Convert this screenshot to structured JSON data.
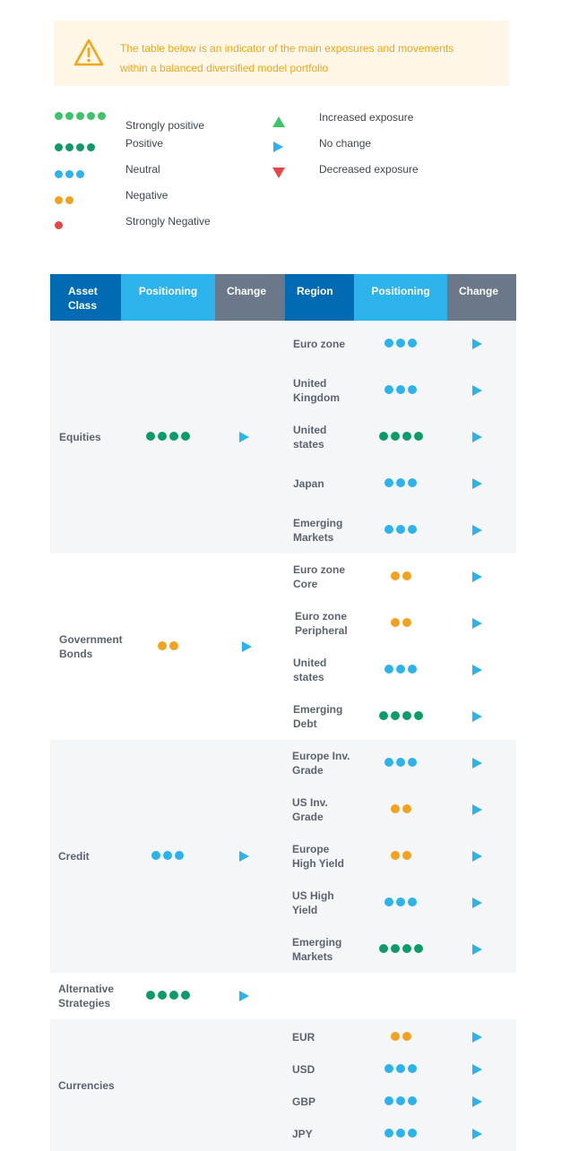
{
  "notice": {
    "icon": "warning-triangle-icon",
    "text_line1": "The table below is an indicator of the main exposures and movements",
    "text_line2": "within a balanced diversified model portfolio"
  },
  "colors": {
    "strongly_positive": "#3cc46a",
    "positive": "#0d9b68",
    "neutral": "#2db3ec",
    "negative": "#f3a21f",
    "strongly_negative": "#e84545",
    "header_dark": "#006ab3",
    "header_light": "#2db3ec",
    "header_grey": "#6a7889"
  },
  "legend": {
    "ratings": [
      {
        "label": "Strongly positive",
        "count": 5,
        "color": "strongly_positive"
      },
      {
        "label": "Positive",
        "count": 4,
        "color": "positive"
      },
      {
        "label": "Neutral",
        "count": 3,
        "color": "neutral"
      },
      {
        "label": "Negative",
        "count": 2,
        "color": "negative"
      },
      {
        "label": "Strongly Negative",
        "count": 1,
        "color": "strongly_negative"
      }
    ],
    "changes": [
      {
        "label": "Increased exposure",
        "icon": "triangle-up-icon"
      },
      {
        "label": "No change",
        "icon": "triangle-right-icon"
      },
      {
        "label": "Decreased exposure",
        "icon": "triangle-down-icon"
      }
    ]
  },
  "table": {
    "headers": {
      "asset_class_1": "Asset",
      "asset_class_2": "Class",
      "positioning": "Positioning",
      "change": "Change",
      "region": "Region",
      "positioning2": "Positioning",
      "change2": "Change"
    },
    "groups": [
      {
        "name_1": "Equities",
        "name_2": "",
        "positioning": 4,
        "color": "positive",
        "change": "no-change",
        "regions": [
          {
            "name_1": "Euro zone",
            "name_2": "",
            "positioning": 3,
            "color": "neutral",
            "change": "no-change"
          },
          {
            "name_1": "United",
            "name_2": "Kingdom",
            "positioning": 3,
            "color": "neutral",
            "change": "no-change"
          },
          {
            "name_1": "United",
            "name_2": "states",
            "positioning": 4,
            "color": "positive",
            "change": "no-change"
          },
          {
            "name_1": "Japan",
            "name_2": "",
            "positioning": 3,
            "color": "neutral",
            "change": "no-change"
          },
          {
            "name_1": "Emerging",
            "name_2": "Markets",
            "positioning": 3,
            "color": "neutral",
            "change": "no-change"
          }
        ]
      },
      {
        "name_1": "Government",
        "name_2": "Bonds",
        "positioning": 2,
        "color": "negative",
        "change": "no-change",
        "regions": [
          {
            "name_1": "Euro zone",
            "name_2": "Core",
            "positioning": 2,
            "color": "negative",
            "change": "no-change"
          },
          {
            "name_1": "Euro zone",
            "name_2": "Peripheral",
            "positioning": 2,
            "color": "negative",
            "change": "no-change"
          },
          {
            "name_1": "United",
            "name_2": "states",
            "positioning": 3,
            "color": "neutral",
            "change": "no-change"
          },
          {
            "name_1": "Emerging",
            "name_2": "Debt",
            "positioning": 4,
            "color": "positive",
            "change": "no-change"
          }
        ]
      },
      {
        "name_1": "Credit",
        "name_2": "",
        "positioning": 3,
        "color": "neutral",
        "change": "no-change",
        "regions": [
          {
            "name_1": "Europe Inv.",
            "name_2": "Grade",
            "positioning": 3,
            "color": "neutral",
            "change": "no-change"
          },
          {
            "name_1": "US Inv.",
            "name_2": "Grade",
            "positioning": 2,
            "color": "negative",
            "change": "no-change"
          },
          {
            "name_1": "Europe",
            "name_2": "High Yield",
            "positioning": 2,
            "color": "negative",
            "change": "no-change"
          },
          {
            "name_1": "US High",
            "name_2": "Yield",
            "positioning": 3,
            "color": "neutral",
            "change": "no-change"
          },
          {
            "name_1": "Emerging",
            "name_2": "Markets",
            "positioning": 4,
            "color": "positive",
            "change": "no-change"
          }
        ]
      },
      {
        "name_1": "Alternative",
        "name_2": "Strategies",
        "positioning": 4,
        "color": "positive",
        "change": "no-change",
        "regions": []
      },
      {
        "name_1": "Currencies",
        "name_2": "",
        "positioning": 0,
        "color": "",
        "change": "",
        "regions": [
          {
            "name_1": "EUR",
            "name_2": "",
            "positioning": 2,
            "color": "negative",
            "change": "no-change"
          },
          {
            "name_1": "USD",
            "name_2": "",
            "positioning": 3,
            "color": "neutral",
            "change": "no-change"
          },
          {
            "name_1": "GBP",
            "name_2": "",
            "positioning": 3,
            "color": "neutral",
            "change": "no-change"
          },
          {
            "name_1": "JPY",
            "name_2": "",
            "positioning": 3,
            "color": "neutral",
            "change": "no-change"
          }
        ]
      }
    ]
  }
}
